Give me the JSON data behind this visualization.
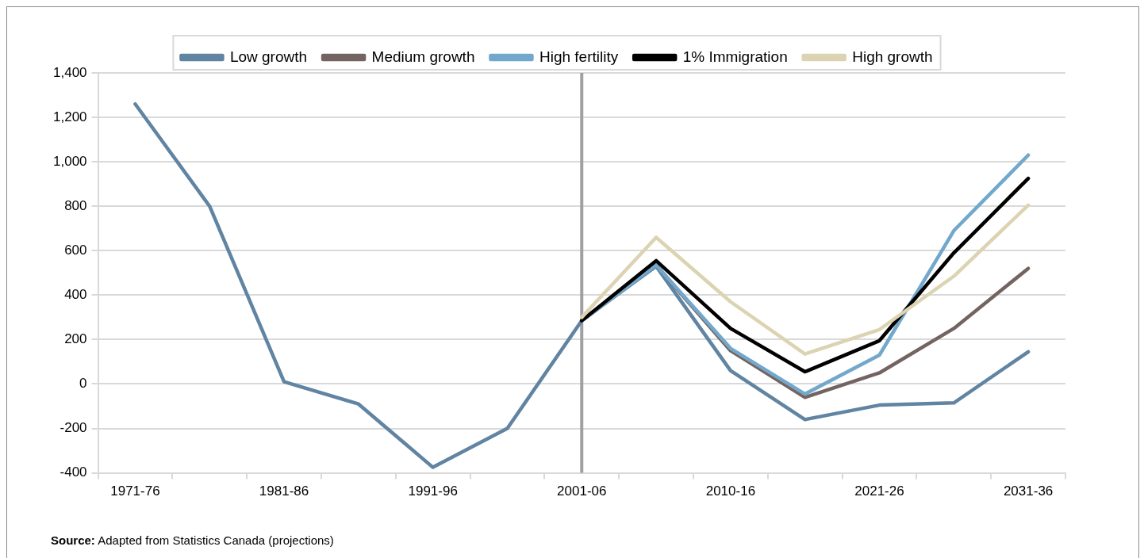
{
  "chart_data": {
    "type": "line",
    "categories": [
      "1971-76",
      null,
      "1981-86",
      null,
      "1991-96",
      null,
      "2001-06",
      null,
      "2010-16",
      null,
      "2021-26",
      null,
      "2031-36"
    ],
    "series": [
      {
        "name": "Low growth",
        "color": "#6084a2",
        "values": [
          1260,
          800,
          10,
          -90,
          -375,
          -200,
          285,
          530,
          60,
          -160,
          -95,
          -85,
          145
        ]
      },
      {
        "name": "Medium growth",
        "color": "#736461",
        "values": [
          null,
          null,
          null,
          null,
          null,
          null,
          285,
          535,
          150,
          -60,
          50,
          250,
          520
        ]
      },
      {
        "name": "High fertility",
        "color": "#72a8cc",
        "values": [
          null,
          null,
          null,
          null,
          null,
          null,
          285,
          535,
          160,
          -45,
          130,
          690,
          1030
        ]
      },
      {
        "name": "1% Immigration",
        "color": "#000000",
        "values": [
          null,
          null,
          null,
          null,
          null,
          null,
          285,
          555,
          250,
          55,
          195,
          590,
          925
        ]
      },
      {
        "name": "High growth",
        "color": "#dcd3b2",
        "values": [
          null,
          null,
          null,
          null,
          null,
          null,
          300,
          660,
          370,
          135,
          245,
          485,
          805
        ]
      }
    ],
    "ylim": [
      -400,
      1400
    ],
    "yticks": [
      -400,
      -200,
      0,
      200,
      400,
      600,
      800,
      {
        "value": 1000,
        "label": "1,000"
      },
      {
        "value": 1200,
        "label": "1,200"
      },
      {
        "value": 1400,
        "label": "1,400"
      }
    ],
    "grid": "y",
    "legend": "top",
    "marker": "none",
    "line_style": "solid",
    "ref_lines": [
      {
        "axis": "x",
        "value": "2001-06",
        "color": "#a0a0a4"
      }
    ],
    "annotations": [
      "Source: Adapted from Statistics Canada (projections)"
    ]
  }
}
